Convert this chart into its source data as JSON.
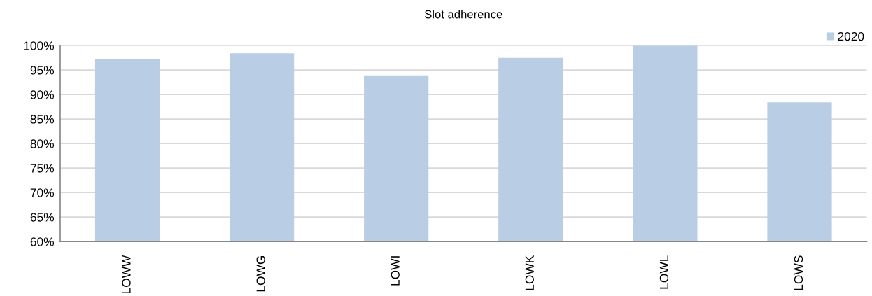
{
  "chart_data": {
    "type": "bar",
    "title": "Slot adherence",
    "categories": [
      "LOWW",
      "LOWG",
      "LOWI",
      "LOWK",
      "LOWL",
      "LOWS"
    ],
    "series": [
      {
        "name": "2020",
        "color": "#b9cde5",
        "values": [
          97.3,
          98.4,
          93.9,
          97.5,
          100,
          88.4
        ]
      }
    ],
    "ylim": [
      60,
      100
    ],
    "yticks": [
      {
        "value": 60,
        "label": "60%"
      },
      {
        "value": 65,
        "label": "65%"
      },
      {
        "value": 70,
        "label": "70%"
      },
      {
        "value": 75,
        "label": "75%"
      },
      {
        "value": 80,
        "label": "80%"
      },
      {
        "value": 85,
        "label": "85%"
      },
      {
        "value": 90,
        "label": "90%"
      },
      {
        "value": 95,
        "label": "95%"
      },
      {
        "value": 100,
        "label": "100%"
      }
    ],
    "grid": "y",
    "legend": "top right"
  }
}
